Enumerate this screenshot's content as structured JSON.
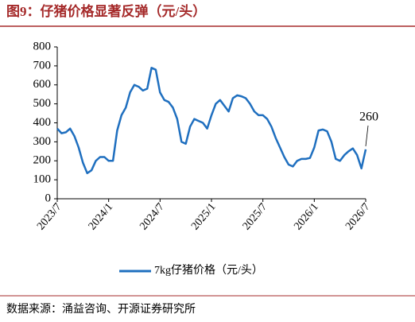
{
  "title": "图9：仔猪价格显著反弹（元/头）",
  "source": "数据来源：涌益咨询、开源证券研究所",
  "chart_data": {
    "type": "line",
    "categories": [
      "2023/7",
      null,
      null,
      null,
      null,
      null,
      null,
      null,
      null,
      null,
      null,
      null,
      "2024/1",
      null,
      null,
      null,
      null,
      null,
      null,
      null,
      null,
      null,
      null,
      null,
      "2024/7",
      null,
      null,
      null,
      null,
      null,
      null,
      null,
      null,
      null,
      null,
      null,
      "2025/1",
      null,
      null,
      null,
      null,
      null,
      null,
      null,
      null,
      null,
      null,
      null,
      "2025/7",
      null,
      null,
      null,
      null,
      null,
      null,
      null,
      null,
      null,
      null,
      null,
      "2026/1",
      null,
      null,
      null,
      null,
      null,
      null,
      null,
      null,
      null,
      null,
      null,
      "2026/7"
    ],
    "series": [
      {
        "name": "7kg仔猪价格（元/头）",
        "color": "#1f6fbf",
        "values": [
          370,
          345,
          350,
          370,
          330,
          270,
          190,
          135,
          150,
          200,
          220,
          220,
          200,
          200,
          360,
          440,
          480,
          560,
          600,
          590,
          570,
          580,
          690,
          680,
          560,
          520,
          510,
          480,
          420,
          300,
          290,
          380,
          420,
          410,
          400,
          370,
          440,
          500,
          520,
          490,
          460,
          530,
          545,
          540,
          530,
          500,
          460,
          440,
          440,
          420,
          380,
          320,
          270,
          220,
          180,
          170,
          200,
          210,
          210,
          215,
          270,
          360,
          365,
          355,
          300,
          210,
          200,
          230,
          250,
          265,
          230,
          160,
          260
        ]
      }
    ],
    "ylim": [
      0,
      800
    ],
    "yticks": [
      0,
      100,
      200,
      300,
      400,
      500,
      600,
      700,
      800
    ]
  }
}
